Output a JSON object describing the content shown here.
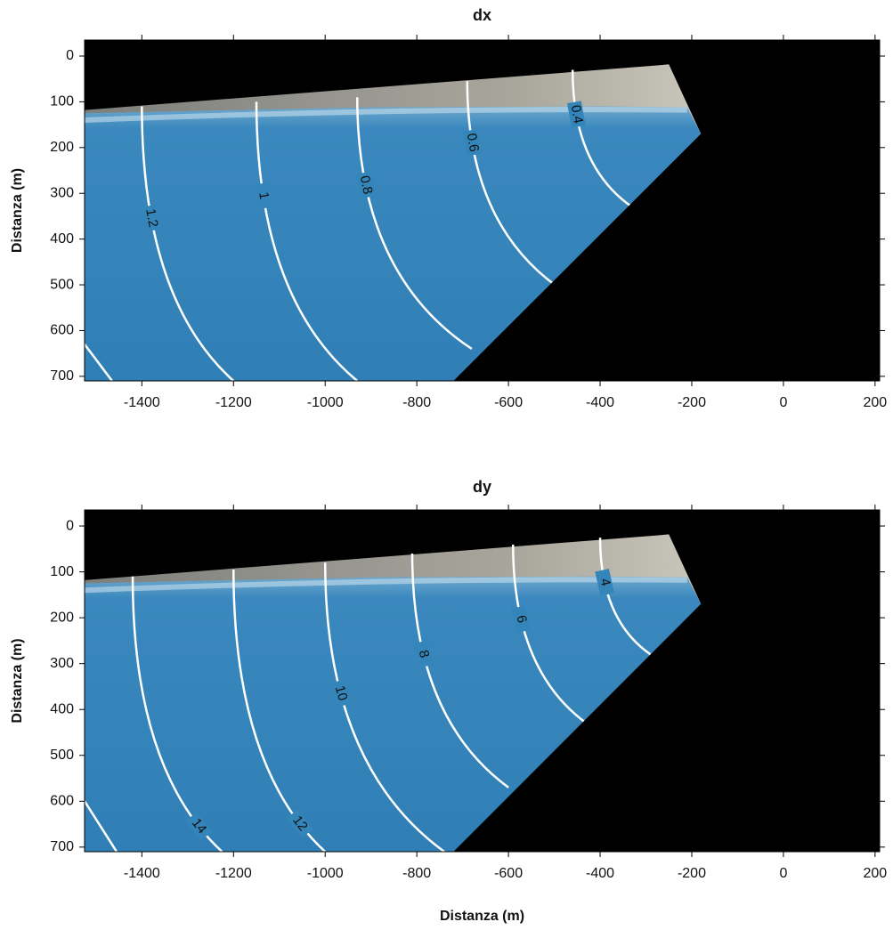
{
  "chart_data": [
    {
      "type": "contour",
      "title": "dx",
      "ylabel": "Distanza (m)",
      "xlim": [
        -1525,
        210
      ],
      "ylim": [
        -35,
        710
      ],
      "y_inverted": true,
      "xticks": [
        -1400,
        -1200,
        -1000,
        -800,
        -600,
        -400,
        -200,
        0,
        200
      ],
      "yticks": [
        0,
        100,
        200,
        300,
        400,
        500,
        600,
        700
      ],
      "levels": [
        1.2,
        1,
        0.8,
        0.6,
        0.4
      ],
      "line_color": "#ffffff"
    },
    {
      "type": "contour",
      "title": "dy",
      "ylabel": "Distanza (m)",
      "xlabel": "Distanza (m)",
      "xlim": [
        -1525,
        210
      ],
      "ylim": [
        -35,
        710
      ],
      "y_inverted": true,
      "xticks": [
        -1400,
        -1200,
        -1000,
        -800,
        -600,
        -400,
        -200,
        0,
        200
      ],
      "yticks": [
        0,
        100,
        200,
        300,
        400,
        500,
        600,
        700
      ],
      "levels": [
        14,
        12,
        10,
        8,
        6,
        4
      ],
      "line_color": "#ffffff"
    }
  ]
}
